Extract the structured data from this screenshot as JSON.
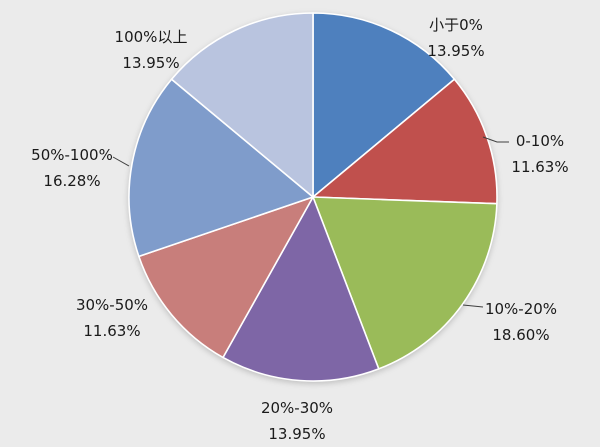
{
  "chart_data": {
    "type": "pie",
    "title": "",
    "legend": "none",
    "background": "#EBEBEB",
    "start_angle_deg": 0,
    "direction": "clockwise",
    "slices": [
      {
        "label": "小于0%",
        "value": 13.95,
        "percent_label": "13.95%",
        "color": "#4E80BE"
      },
      {
        "label": "0-10%",
        "value": 11.63,
        "percent_label": "11.63%",
        "color": "#C0504D"
      },
      {
        "label": "10%-20%",
        "value": 18.6,
        "percent_label": "18.60%",
        "color": "#9ABB59"
      },
      {
        "label": "20%-30%",
        "value": 13.95,
        "percent_label": "13.95%",
        "color": "#7E66A6"
      },
      {
        "label": "30%-50%",
        "value": 11.63,
        "percent_label": "11.63%",
        "color": "#C87E7B"
      },
      {
        "label": "50%-100%",
        "value": 16.28,
        "percent_label": "16.28%",
        "color": "#7F9CCB"
      },
      {
        "label": "100%以上",
        "value": 13.95,
        "percent_label": "13.95%",
        "color": "#B9C4DF"
      }
    ]
  }
}
